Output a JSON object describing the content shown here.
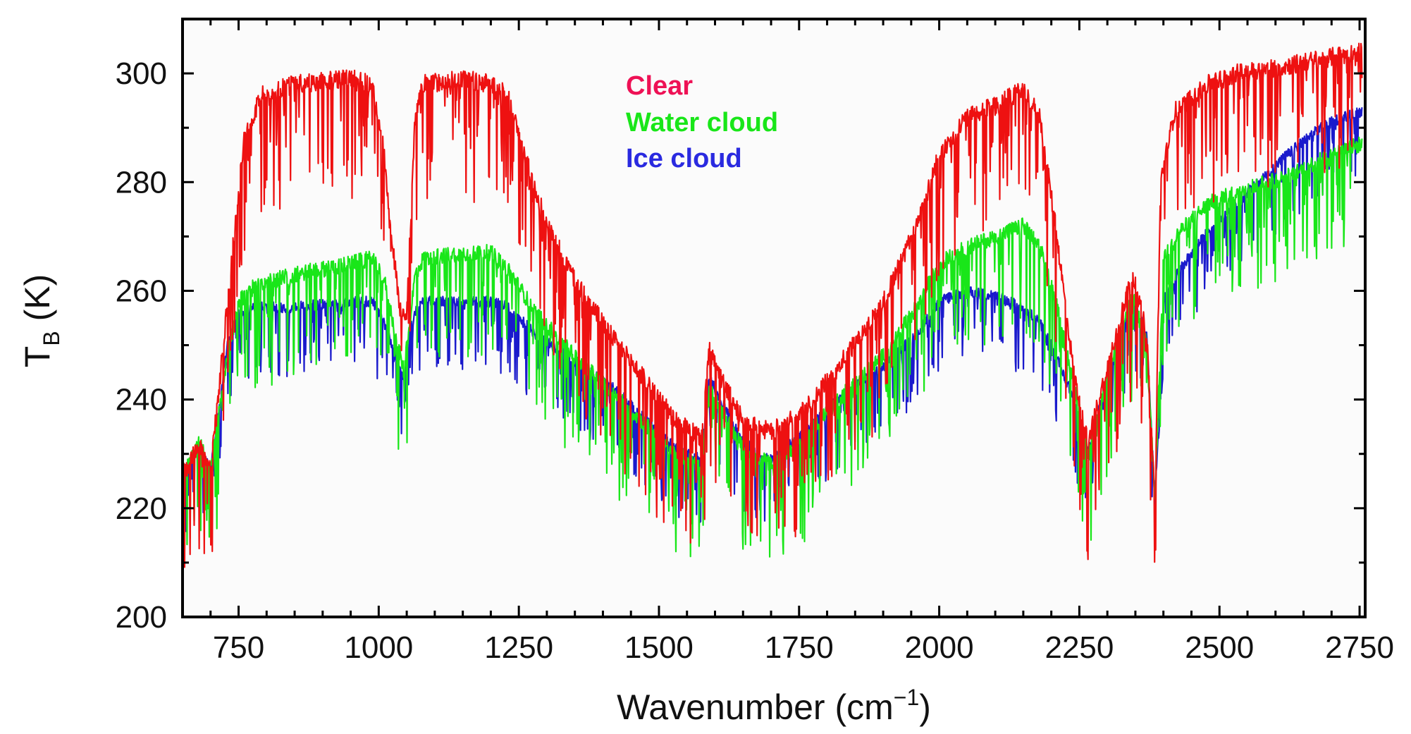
{
  "chart_data": {
    "type": "line",
    "xlabel": "Wavenumber (cm",
    "xlabel_exponent": "−1",
    "xlabel_suffix": ")",
    "ylabel_main": "T",
    "ylabel_sub": "B",
    "ylabel_unit": " (K)",
    "xlim": [
      650,
      2760
    ],
    "ylim": [
      200,
      310
    ],
    "x_ticks": [
      750,
      1000,
      1250,
      1500,
      1750,
      2000,
      2250,
      2500,
      2750
    ],
    "y_ticks": [
      200,
      220,
      240,
      260,
      280,
      300
    ],
    "grid": false,
    "legend_position": "top-center",
    "series": [
      {
        "name": "Ice cloud",
        "color": "#1a1acc",
        "x": [
          650,
          680,
          700,
          715,
          730,
          750,
          780,
          850,
          950,
          990,
          1010,
          1030,
          1045,
          1055,
          1065,
          1080,
          1150,
          1200,
          1230,
          1280,
          1350,
          1420,
          1480,
          1530,
          1575,
          1590,
          1610,
          1650,
          1700,
          1760,
          1820,
          1900,
          1960,
          2000,
          2050,
          2100,
          2150,
          2180,
          2210,
          2240,
          2265,
          2290,
          2320,
          2345,
          2370,
          2385,
          2400,
          2430,
          2480,
          2550,
          2620,
          2680,
          2720,
          2755
        ],
        "y": [
          226,
          232,
          227,
          238,
          250,
          256,
          257,
          257,
          258,
          258,
          254,
          248,
          244,
          252,
          256,
          258,
          258,
          258,
          257,
          252,
          247,
          242,
          236,
          231,
          229,
          244,
          240,
          232,
          229,
          234,
          240,
          246,
          252,
          258,
          260,
          259,
          257,
          254,
          248,
          240,
          230,
          240,
          250,
          258,
          252,
          221,
          258,
          264,
          271,
          278,
          285,
          290,
          292,
          293
        ],
        "noise": 8
      },
      {
        "name": "Water cloud",
        "color": "#19e619",
        "x": [
          650,
          680,
          700,
          715,
          730,
          750,
          780,
          850,
          950,
          990,
          1010,
          1030,
          1045,
          1055,
          1065,
          1080,
          1150,
          1200,
          1230,
          1280,
          1350,
          1420,
          1480,
          1530,
          1575,
          1590,
          1610,
          1650,
          1700,
          1760,
          1820,
          1900,
          1960,
          2000,
          2050,
          2100,
          2150,
          2180,
          2210,
          2240,
          2265,
          2290,
          2320,
          2345,
          2370,
          2385,
          2400,
          2430,
          2480,
          2550,
          2620,
          2680,
          2720,
          2755
        ],
        "y": [
          226,
          232,
          227,
          238,
          248,
          258,
          261,
          263,
          265,
          266,
          262,
          252,
          245,
          254,
          263,
          266,
          267,
          267,
          264,
          256,
          248,
          241,
          235,
          230,
          228,
          242,
          238,
          231,
          228,
          233,
          240,
          248,
          257,
          265,
          268,
          270,
          272,
          268,
          257,
          243,
          230,
          240,
          252,
          259,
          250,
          222,
          266,
          271,
          276,
          279,
          281,
          284,
          286,
          287
        ],
        "noise": 12
      },
      {
        "name": "Clear",
        "color": "#ee1111",
        "x": [
          650,
          680,
          700,
          715,
          740,
          760,
          790,
          850,
          950,
          990,
          1010,
          1025,
          1040,
          1050,
          1065,
          1080,
          1150,
          1200,
          1230,
          1260,
          1300,
          1350,
          1420,
          1480,
          1530,
          1575,
          1590,
          1610,
          1650,
          1700,
          1760,
          1820,
          1900,
          1960,
          2000,
          2050,
          2100,
          2150,
          2180,
          2210,
          2240,
          2265,
          2290,
          2320,
          2345,
          2370,
          2385,
          2395,
          2420,
          2480,
          2530,
          2600,
          2650,
          2700,
          2755
        ],
        "y": [
          226,
          232,
          227,
          242,
          268,
          288,
          296,
          298,
          299,
          298,
          285,
          268,
          255,
          256,
          292,
          298,
          299,
          298,
          296,
          285,
          272,
          262,
          251,
          243,
          236,
          233,
          249,
          244,
          236,
          234,
          238,
          246,
          258,
          272,
          285,
          292,
          294,
          297,
          292,
          270,
          245,
          232,
          242,
          254,
          263,
          252,
          221,
          280,
          293,
          298,
          300,
          301,
          302,
          303,
          304
        ],
        "noise": 14
      }
    ],
    "legend_labels": [
      "Clear",
      "Water cloud",
      "Ice cloud"
    ]
  }
}
